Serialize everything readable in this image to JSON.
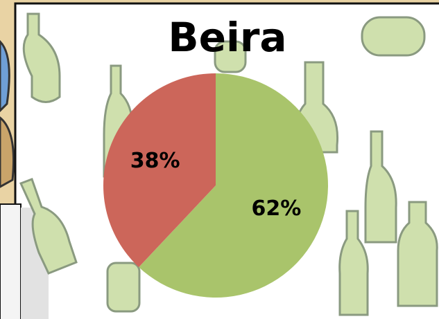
{
  "chart_data": {
    "type": "pie",
    "title": "Beira",
    "values": [
      62,
      38
    ],
    "value_labels": [
      "62%",
      "38%"
    ],
    "colors": [
      "#a9c46b",
      "#cc665a"
    ]
  }
}
